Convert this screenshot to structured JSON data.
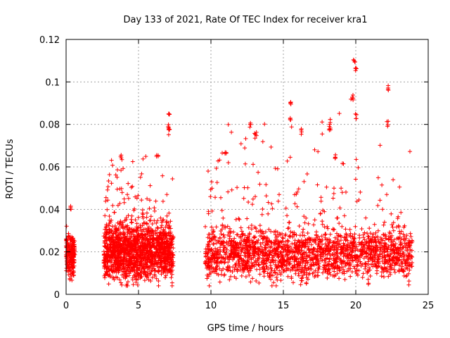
{
  "chart_data": {
    "type": "scatter",
    "title": "Day 133 of 2021, Rate Of TEC Index for receiver kra1",
    "xlabel": "GPS time / hours",
    "ylabel": "ROTI / TECUs",
    "xlim": [
      0,
      25
    ],
    "ylim": [
      0,
      0.12
    ],
    "xticks": [
      "0",
      "5",
      "10",
      "15",
      "20",
      "25"
    ],
    "yticks": [
      "0",
      "0.02",
      "0.04",
      "0.06",
      "0.08",
      "0.1",
      "0.12"
    ],
    "grid": true,
    "marker": "+",
    "color": "#ff0000",
    "segments": [
      {
        "x_start": 0.0,
        "x_end": 0.6,
        "y_base": 0.018,
        "y_spread": 0.006,
        "y_max": 0.044
      },
      {
        "x_start": 2.6,
        "x_end": 7.4,
        "y_base": 0.02,
        "y_spread": 0.008,
        "y_max": 0.086
      },
      {
        "x_start": 9.6,
        "x_end": 23.9,
        "y_base": 0.019,
        "y_spread": 0.007,
        "y_max": 0.112
      }
    ],
    "notable_points": [
      {
        "x": 0.3,
        "y": 0.043
      },
      {
        "x": 3.8,
        "y": 0.066
      },
      {
        "x": 6.3,
        "y": 0.067
      },
      {
        "x": 7.1,
        "y": 0.085
      },
      {
        "x": 7.1,
        "y": 0.08
      },
      {
        "x": 7.1,
        "y": 0.078
      },
      {
        "x": 11.0,
        "y": 0.068
      },
      {
        "x": 12.7,
        "y": 0.081
      },
      {
        "x": 13.1,
        "y": 0.076
      },
      {
        "x": 15.5,
        "y": 0.091
      },
      {
        "x": 15.5,
        "y": 0.085
      },
      {
        "x": 16.2,
        "y": 0.078
      },
      {
        "x": 18.2,
        "y": 0.083
      },
      {
        "x": 18.2,
        "y": 0.08
      },
      {
        "x": 18.6,
        "y": 0.066
      },
      {
        "x": 19.9,
        "y": 0.112
      },
      {
        "x": 20.0,
        "y": 0.107
      },
      {
        "x": 19.8,
        "y": 0.094
      },
      {
        "x": 20.0,
        "y": 0.085
      },
      {
        "x": 22.2,
        "y": 0.099
      },
      {
        "x": 22.2,
        "y": 0.082
      }
    ]
  }
}
